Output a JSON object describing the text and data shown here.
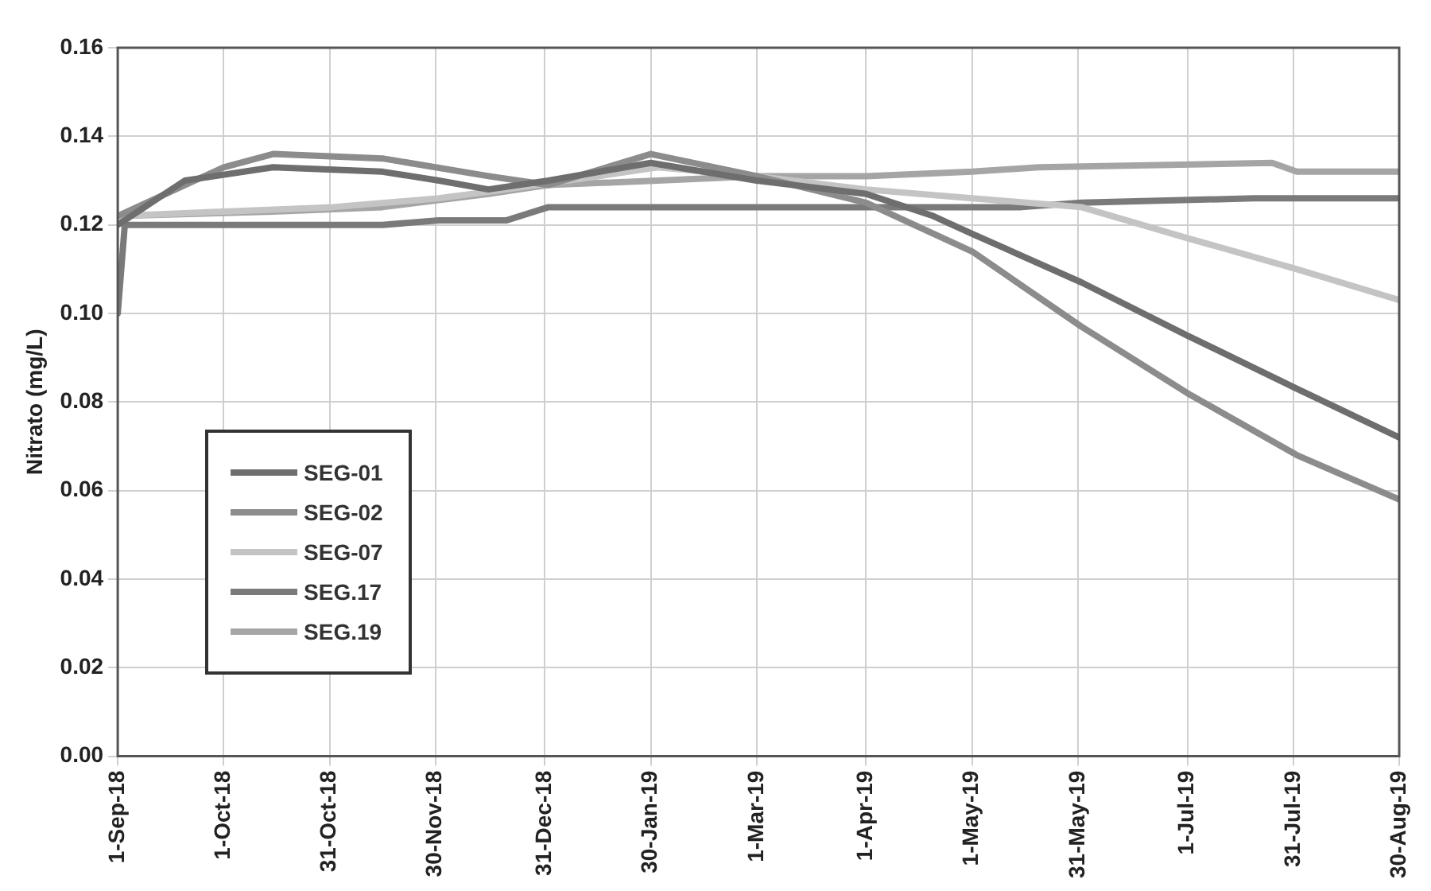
{
  "chart_data": {
    "type": "line",
    "ylabel": "Nitrato (mg/L)",
    "xlim": [
      "2018-09-01",
      "2019-08-30"
    ],
    "xticks": [
      {
        "value": "2018-09-01",
        "label": "1-Sep-18"
      },
      {
        "value": "2018-10-01",
        "label": "1-Oct-18"
      },
      {
        "value": "2018-10-31",
        "label": "31-Oct-18"
      },
      {
        "value": "2018-11-30",
        "label": "30-Nov-18"
      },
      {
        "value": "2018-12-31",
        "label": "31-Dec-18"
      },
      {
        "value": "2019-01-30",
        "label": "30-Jan-19"
      },
      {
        "value": "2019-03-01",
        "label": "1-Mar-19"
      },
      {
        "value": "2019-04-01",
        "label": "1-Apr-19"
      },
      {
        "value": "2019-05-01",
        "label": "1-May-19"
      },
      {
        "value": "2019-05-31",
        "label": "31-May-19"
      },
      {
        "value": "2019-07-01",
        "label": "1-Jul-19"
      },
      {
        "value": "2019-07-31",
        "label": "31-Jul-19"
      },
      {
        "value": "2019-08-30",
        "label": "30-Aug-19"
      }
    ],
    "ylim": [
      0,
      0.16
    ],
    "yticks": [
      {
        "value": 0,
        "label": "0.00"
      },
      {
        "value": 0.02,
        "label": "0.02"
      },
      {
        "value": 0.04,
        "label": "0.04"
      },
      {
        "value": 0.06,
        "label": "0.06"
      },
      {
        "value": 0.08,
        "label": "0.08"
      },
      {
        "value": 0.1,
        "label": "0.10"
      },
      {
        "value": 0.12,
        "label": "0.12"
      },
      {
        "value": 0.14,
        "label": "0.14"
      },
      {
        "value": 0.16,
        "label": "0.16"
      }
    ],
    "grid": true,
    "legend": "bottom left",
    "marker": "none",
    "series": [
      {
        "name": "SEG-01",
        "color": "#6e6e6e",
        "x": [
          "2018-09-01",
          "2018-09-20",
          "2018-10-15",
          "2018-11-15",
          "2018-12-01",
          "2018-12-15",
          "2019-01-01",
          "2019-01-30",
          "2019-03-01",
          "2019-04-01",
          "2019-04-20",
          "2019-05-01",
          "2019-06-01",
          "2019-07-01",
          "2019-08-01",
          "2019-08-30"
        ],
        "values": [
          0.12,
          0.13,
          0.133,
          0.132,
          0.13,
          0.128,
          0.13,
          0.134,
          0.13,
          0.127,
          0.122,
          0.118,
          0.107,
          0.095,
          0.083,
          0.072
        ]
      },
      {
        "name": "SEG-02",
        "color": "#8c8c8c",
        "x": [
          "2018-09-01",
          "2018-10-01",
          "2018-10-15",
          "2018-11-15",
          "2018-12-15",
          "2019-01-01",
          "2019-01-30",
          "2019-03-01",
          "2019-04-01",
          "2019-05-01",
          "2019-06-01",
          "2019-07-01",
          "2019-08-01",
          "2019-08-30"
        ],
        "values": [
          0.122,
          0.133,
          0.136,
          0.135,
          0.131,
          0.129,
          0.136,
          0.131,
          0.125,
          0.114,
          0.097,
          0.082,
          0.068,
          0.058
        ]
      },
      {
        "name": "SEG-07",
        "color": "#c4c4c4",
        "x": [
          "2018-09-01",
          "2018-10-01",
          "2018-11-01",
          "2018-12-01",
          "2018-12-20",
          "2019-01-15",
          "2019-02-01",
          "2019-03-01",
          "2019-04-01",
          "2019-05-01",
          "2019-06-01",
          "2019-07-01",
          "2019-08-01",
          "2019-08-30"
        ],
        "values": [
          0.122,
          0.123,
          0.124,
          0.126,
          0.128,
          0.131,
          0.133,
          0.131,
          0.128,
          0.126,
          0.124,
          0.117,
          0.11,
          0.103
        ]
      },
      {
        "name": "SEG.17",
        "color": "#7a7a7a",
        "x": [
          "2018-09-01",
          "2018-09-03",
          "2018-11-15",
          "2018-12-01",
          "2018-12-20",
          "2019-01-01",
          "2019-05-15",
          "2019-06-01",
          "2019-07-20",
          "2019-08-30"
        ],
        "values": [
          0.1,
          0.12,
          0.12,
          0.121,
          0.121,
          0.124,
          0.124,
          0.125,
          0.126,
          0.126
        ]
      },
      {
        "name": "SEG.19",
        "color": "#a5a5a5",
        "x": [
          "2018-09-01",
          "2018-10-15",
          "2018-11-15",
          "2018-12-15",
          "2019-01-01",
          "2019-02-01",
          "2019-03-01",
          "2019-04-01",
          "2019-05-01",
          "2019-05-20",
          "2019-07-25",
          "2019-08-01",
          "2019-08-30"
        ],
        "values": [
          0.122,
          0.123,
          0.124,
          0.127,
          0.129,
          0.13,
          0.131,
          0.131,
          0.132,
          0.133,
          0.134,
          0.132,
          0.132
        ]
      }
    ]
  }
}
